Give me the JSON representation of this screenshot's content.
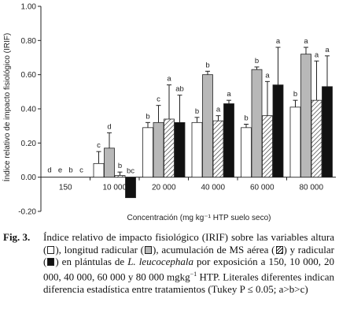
{
  "chart_data": {
    "type": "bar",
    "categories": [
      "150",
      "10 000",
      "20 000",
      "40 000",
      "60 000",
      "80 000"
    ],
    "series": [
      {
        "name": "altura",
        "fill": "white",
        "values": [
          0.0,
          0.08,
          0.29,
          0.32,
          0.29,
          0.41
        ],
        "errors": [
          0.0,
          0.07,
          0.03,
          0.03,
          0.02,
          0.04
        ],
        "letters": [
          "d",
          "c",
          "b",
          "b",
          "b",
          "b"
        ]
      },
      {
        "name": "longitud radicular",
        "fill": "gray",
        "values": [
          0.0,
          0.17,
          0.32,
          0.6,
          0.63,
          0.72
        ],
        "errors": [
          0.0,
          0.09,
          0.1,
          0.02,
          0.015,
          0.04
        ],
        "letters": [
          "e",
          "d",
          "c",
          "b",
          "b",
          "a"
        ]
      },
      {
        "name": "acumulación de MS aérea",
        "fill": "hatch",
        "values": [
          0.0,
          0.01,
          0.34,
          0.33,
          0.36,
          0.45
        ],
        "errors": [
          0.0,
          0.02,
          0.2,
          0.03,
          0.2,
          0.23
        ],
        "letters": [
          "b",
          "b",
          "a",
          "a",
          "a",
          "a"
        ]
      },
      {
        "name": "radicular",
        "fill": "black",
        "values": [
          0.0,
          -0.12,
          0.32,
          0.43,
          0.54,
          0.53
        ],
        "errors": [
          0.0,
          0.0,
          0.16,
          0.02,
          0.22,
          0.18
        ],
        "letters": [
          "c",
          "bc",
          "ab",
          "a",
          "a",
          "a"
        ]
      }
    ],
    "ylim": [
      -0.2,
      1.0
    ],
    "yticks": [
      "-0.20",
      "0.00",
      "0.20",
      "0.40",
      "0.60",
      "0.80",
      "1.00"
    ],
    "ylabel": "Índice relativo de impacto fisiológico (IRIF)",
    "xlabel": "Concentración (mg kg⁻¹ HTP suelo seco)",
    "grid": false,
    "colors": {
      "white": "#ffffff",
      "gray": "#b8b8b8",
      "black": "#111111",
      "stroke": "#222222"
    }
  },
  "caption": {
    "label": "Fig. 3.",
    "parts": [
      "Índice relativo de impacto fisiológico (IRIF) sobre las variables altura (",
      "), longitud radicular (",
      "), acumulación de MS aérea (",
      ") y radicular (",
      ") en plántulas de ",
      "L. leucocephala",
      " por exposición a 150, 10 000, 20 000, 40 000, 60 000 y 80 000 mgkg",
      "−1",
      " HTP. Literales diferentes indican diferencia estadística entre tratamientos (Tukey P ≤ 0.05; a>b>c)"
    ]
  }
}
